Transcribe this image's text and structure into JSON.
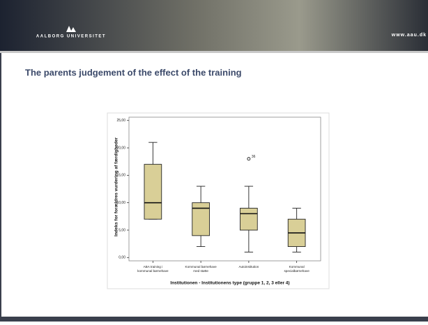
{
  "header": {
    "university": "AALBORG UNIVERSITET",
    "url": "www.aau.dk"
  },
  "chart_data": {
    "type": "box",
    "title": "The parents judgement of the effect of the training",
    "x_label": "Institutionen - Institutionens type (gruppe 1, 2, 3 eller 4)",
    "y_label": "Indeks for forældres vurdering af færdigheder",
    "categories": [
      [
        "ABA training i",
        "kommunal børnehave"
      ],
      [
        "Kommunal børnehave",
        "med støtte"
      ],
      [
        "Autoinstitution"
      ],
      [
        "Kommunal",
        "specialbørnehave"
      ]
    ],
    "boxes": [
      {
        "min": 7,
        "q1": 7,
        "median": 10,
        "q3": 17,
        "max": 21
      },
      {
        "min": 2,
        "q1": 4,
        "median": 9,
        "q3": 10,
        "max": 13
      },
      {
        "min": 1,
        "q1": 5,
        "median": 8,
        "q3": 9,
        "max": 13,
        "outliers": [
          18
        ],
        "outlier_labels": [
          "36"
        ]
      },
      {
        "min": 1,
        "q1": 2,
        "median": 4.5,
        "q3": 7,
        "max": 9
      }
    ],
    "color": "#d9cf97",
    "ylim": [
      -0.6,
      25.6
    ],
    "yticks": [
      {
        "value": 0,
        "label": "0,00"
      },
      {
        "value": 5,
        "label": "5,00"
      },
      {
        "value": 10,
        "label": "10,00"
      },
      {
        "value": 15,
        "label": "15,00"
      },
      {
        "value": 20,
        "label": "20,00"
      },
      {
        "value": 25,
        "label": "25,00"
      }
    ]
  }
}
